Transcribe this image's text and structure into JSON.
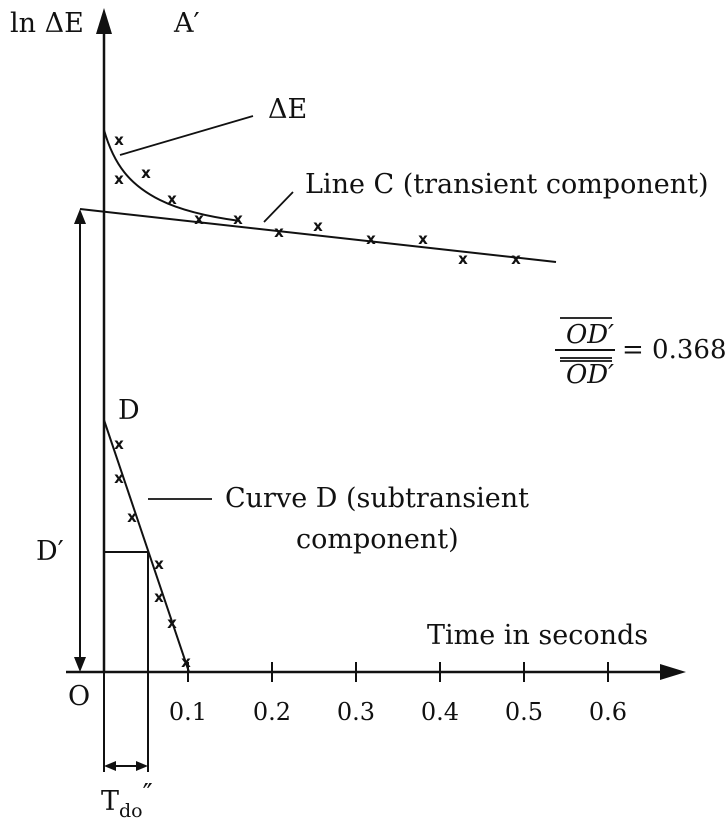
{
  "labels": {
    "y_axis": "ln ΔE",
    "a_prime": "A′",
    "delta_e": "ΔE",
    "line_c": "Line C (transient component)",
    "d": "D",
    "curve_d_line1": "Curve D (subtransient",
    "curve_d_line2": "component)",
    "d_prime": "D′",
    "origin": "O",
    "time_axis": "Time in seconds",
    "ratio_num": "OD′",
    "ratio_den": "OD′",
    "ratio_value": "= 0.368",
    "tdo_main": "T",
    "tdo_sub": "do",
    "tdo_prime": "″"
  },
  "x_ticks": [
    "0.1",
    "0.2",
    "0.3",
    "0.4",
    "0.5",
    "0.6"
  ],
  "marker_symbol": "x",
  "colors": {
    "ink": "#111111",
    "background": "#ffffff"
  }
}
